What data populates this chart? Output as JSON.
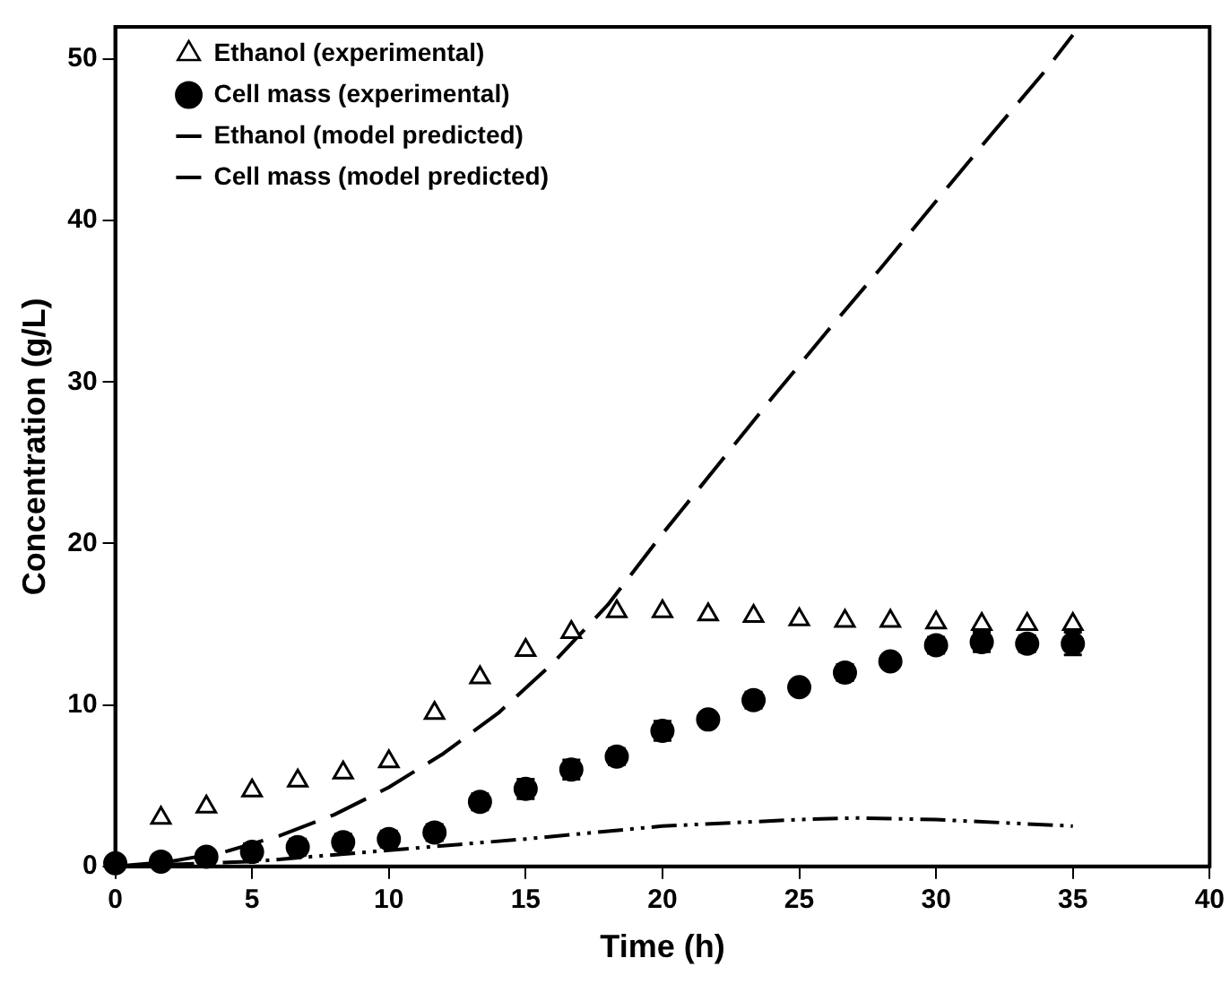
{
  "chart_data": {
    "type": "scatter",
    "xlabel": "Time (h)",
    "ylabel": "Concentration (g/L)",
    "xlim": [
      0,
      40
    ],
    "xticks": [
      0,
      5,
      10,
      15,
      20,
      25,
      30,
      35,
      40
    ],
    "ylim": [
      0,
      52
    ],
    "yticks": [
      0,
      10,
      20,
      30,
      40,
      50
    ],
    "grid": false,
    "legend": "top left",
    "series": [
      {
        "name": "Ethanol (experimental)",
        "marker": "triangle",
        "color": "#000000",
        "x": [
          1.67,
          3.33,
          5,
          6.67,
          8.33,
          10,
          11.67,
          13.33,
          15,
          16.67,
          18.33,
          20,
          21.67,
          23.33,
          25,
          26.67,
          28.33,
          30,
          31.67,
          33.33,
          35
        ],
        "values": [
          3.0,
          3.7,
          4.7,
          5.3,
          5.8,
          6.5,
          9.5,
          11.7,
          13.4,
          14.5,
          15.8,
          15.8,
          15.6,
          15.5,
          15.3,
          15.2,
          15.2,
          15.1,
          15.0,
          15.0,
          15.0
        ]
      },
      {
        "name": "Cell mass (experimental)",
        "marker": "circle",
        "color": "#000000",
        "x": [
          0,
          1.67,
          3.33,
          5,
          6.67,
          8.33,
          10,
          11.67,
          13.33,
          15,
          16.67,
          18.33,
          20,
          21.67,
          23.33,
          25,
          26.67,
          28.33,
          30,
          31.67,
          33.33,
          35
        ],
        "values": [
          0.2,
          0.3,
          0.6,
          0.9,
          1.2,
          1.5,
          1.7,
          2.1,
          4.0,
          4.8,
          6.0,
          6.8,
          8.4,
          9.1,
          10.3,
          11.1,
          12.0,
          12.7,
          13.7,
          13.9,
          13.8,
          13.8
        ],
        "errors": [
          null,
          null,
          0.4,
          0.5,
          0.5,
          0.5,
          0.5,
          0.5,
          0.5,
          0.6,
          0.6,
          0.5,
          0.6,
          0.4,
          0.5,
          0.4,
          0.5,
          0.4,
          0.5,
          0.6,
          0.5,
          0.7
        ]
      },
      {
        "name": "Ethanol (model predicted)",
        "type": "line",
        "line_style": "dashed",
        "color": "#000000",
        "x": [
          0,
          2,
          4,
          6,
          8,
          10,
          12,
          14,
          16,
          18,
          20,
          22,
          24,
          26,
          28,
          30,
          32,
          34,
          35
        ],
        "values": [
          0,
          0.3,
          0.9,
          1.9,
          3.2,
          4.9,
          7.0,
          9.5,
          12.6,
          16.2,
          20.6,
          24.8,
          29.0,
          33.1,
          37.1,
          41.2,
          45.3,
          49.3,
          51.5
        ]
      },
      {
        "name": "Cell mass (model predicted)",
        "type": "line",
        "line_style": "dashdotdot",
        "color": "#000000",
        "x": [
          0,
          5,
          10,
          15,
          20,
          25,
          27,
          30,
          35
        ],
        "values": [
          0,
          0.3,
          1.0,
          1.7,
          2.5,
          2.9,
          3.0,
          2.9,
          2.5
        ]
      }
    ]
  }
}
